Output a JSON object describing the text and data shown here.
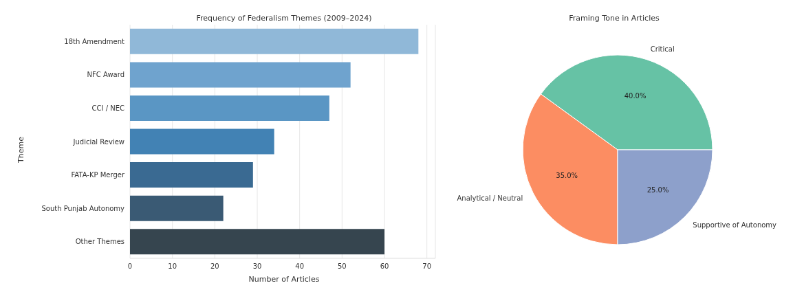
{
  "chart_data": [
    {
      "type": "bar",
      "orientation": "horizontal",
      "title": "Frequency of Federalism Themes (2009–2024)",
      "xlabel": "Number of Articles",
      "ylabel": "Theme",
      "categories": [
        "18th Amendment",
        "NFC Award",
        "CCI / NEC",
        "Judicial Review",
        "FATA-KP Merger",
        "South Punjab Autonomy",
        "Other Themes"
      ],
      "values": [
        68,
        52,
        47,
        34,
        29,
        22,
        60
      ],
      "colors": [
        "#90b8d8",
        "#6fa3ce",
        "#5a96c4",
        "#4282b4",
        "#3a6a92",
        "#3a5a74",
        "#36454f"
      ],
      "xlim": [
        0,
        72
      ],
      "xticks": [
        0,
        10,
        20,
        30,
        40,
        50,
        60,
        70
      ],
      "grid": "x"
    },
    {
      "type": "pie",
      "title": "Framing Tone in Articles",
      "categories": [
        "Critical",
        "Analytical / Neutral",
        "Supportive of Autonomy"
      ],
      "values": [
        40,
        35,
        25
      ],
      "colors": [
        "#66c2a5",
        "#fc8d62",
        "#8da0cb"
      ],
      "value_labels": [
        "40.0%",
        "35.0%",
        "25.0%"
      ]
    }
  ]
}
